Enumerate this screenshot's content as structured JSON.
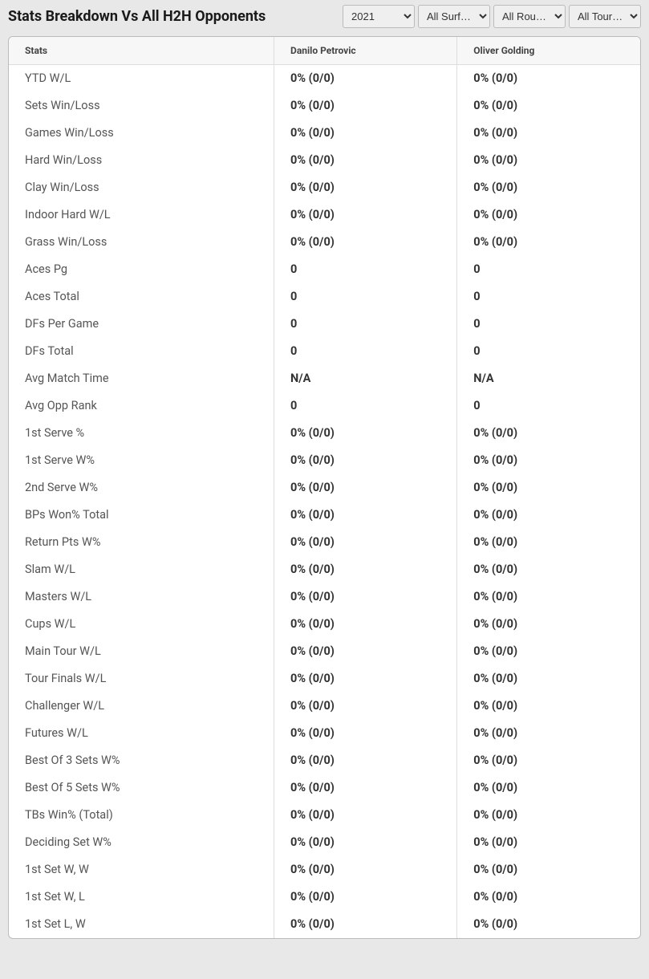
{
  "header": {
    "title": "Stats Breakdown Vs All H2H Opponents"
  },
  "filters": {
    "year": {
      "selected": "2021"
    },
    "surface": {
      "selected": "All Surf…"
    },
    "round": {
      "selected": "All Rou…"
    },
    "tour": {
      "selected": "All Tour…"
    }
  },
  "table": {
    "columns": [
      "Stats",
      "Danilo Petrovic",
      "Oliver Golding"
    ],
    "rows": [
      [
        "YTD W/L",
        "0% (0/0)",
        "0% (0/0)"
      ],
      [
        "Sets Win/Loss",
        "0% (0/0)",
        "0% (0/0)"
      ],
      [
        "Games Win/Loss",
        "0% (0/0)",
        "0% (0/0)"
      ],
      [
        "Hard Win/Loss",
        "0% (0/0)",
        "0% (0/0)"
      ],
      [
        "Clay Win/Loss",
        "0% (0/0)",
        "0% (0/0)"
      ],
      [
        "Indoor Hard W/L",
        "0% (0/0)",
        "0% (0/0)"
      ],
      [
        "Grass Win/Loss",
        "0% (0/0)",
        "0% (0/0)"
      ],
      [
        "Aces Pg",
        "0",
        "0"
      ],
      [
        "Aces Total",
        "0",
        "0"
      ],
      [
        "DFs Per Game",
        "0",
        "0"
      ],
      [
        "DFs Total",
        "0",
        "0"
      ],
      [
        "Avg Match Time",
        "N/A",
        "N/A"
      ],
      [
        "Avg Opp Rank",
        "0",
        "0"
      ],
      [
        "1st Serve %",
        "0% (0/0)",
        "0% (0/0)"
      ],
      [
        "1st Serve W%",
        "0% (0/0)",
        "0% (0/0)"
      ],
      [
        "2nd Serve W%",
        "0% (0/0)",
        "0% (0/0)"
      ],
      [
        "BPs Won% Total",
        "0% (0/0)",
        "0% (0/0)"
      ],
      [
        "Return Pts W%",
        "0% (0/0)",
        "0% (0/0)"
      ],
      [
        "Slam W/L",
        "0% (0/0)",
        "0% (0/0)"
      ],
      [
        "Masters W/L",
        "0% (0/0)",
        "0% (0/0)"
      ],
      [
        "Cups W/L",
        "0% (0/0)",
        "0% (0/0)"
      ],
      [
        "Main Tour W/L",
        "0% (0/0)",
        "0% (0/0)"
      ],
      [
        "Tour Finals W/L",
        "0% (0/0)",
        "0% (0/0)"
      ],
      [
        "Challenger W/L",
        "0% (0/0)",
        "0% (0/0)"
      ],
      [
        "Futures W/L",
        "0% (0/0)",
        "0% (0/0)"
      ],
      [
        "Best Of 3 Sets W%",
        "0% (0/0)",
        "0% (0/0)"
      ],
      [
        "Best Of 5 Sets W%",
        "0% (0/0)",
        "0% (0/0)"
      ],
      [
        "TBs Win% (Total)",
        "0% (0/0)",
        "0% (0/0)"
      ],
      [
        "Deciding Set W%",
        "0% (0/0)",
        "0% (0/0)"
      ],
      [
        "1st Set W, W",
        "0% (0/0)",
        "0% (0/0)"
      ],
      [
        "1st Set W, L",
        "0% (0/0)",
        "0% (0/0)"
      ],
      [
        "1st Set L, W",
        "0% (0/0)",
        "0% (0/0)"
      ]
    ]
  },
  "colors": {
    "page_bg": "#e8e8e8",
    "table_bg": "#ffffff",
    "header_bg": "#f7f7f7",
    "border": "#dddddd",
    "text_primary": "#333333",
    "text_secondary": "#555555"
  }
}
